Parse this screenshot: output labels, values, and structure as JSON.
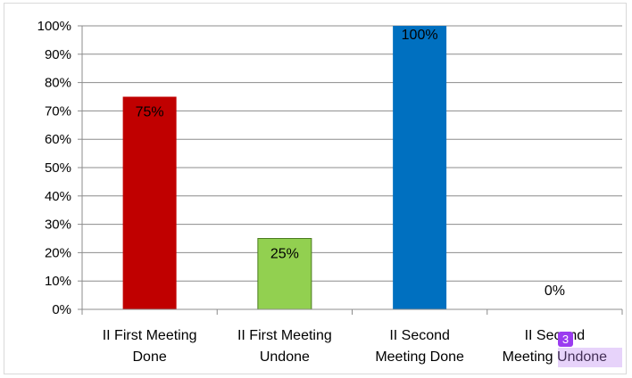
{
  "chart_data": {
    "type": "bar",
    "categories": [
      [
        "II First Meeting",
        "Done"
      ],
      [
        "II First Meeting",
        "Undone"
      ],
      [
        "II Second",
        "Meeting Done"
      ],
      [
        "II Second",
        "Meeting Undone"
      ]
    ],
    "values": [
      75,
      25,
      100,
      0
    ],
    "data_labels": [
      "75%",
      "25%",
      "100%",
      "0%"
    ],
    "colors": [
      "#c00000",
      "#92d050",
      "#0070c0",
      "#ffffff"
    ],
    "yticks": [
      "0%",
      "10%",
      "20%",
      "30%",
      "40%",
      "50%",
      "60%",
      "70%",
      "80%",
      "90%",
      "100%"
    ],
    "ylim": [
      0,
      100
    ],
    "grid": true,
    "legend": "none"
  },
  "overlay": {
    "badge_text": "3"
  }
}
